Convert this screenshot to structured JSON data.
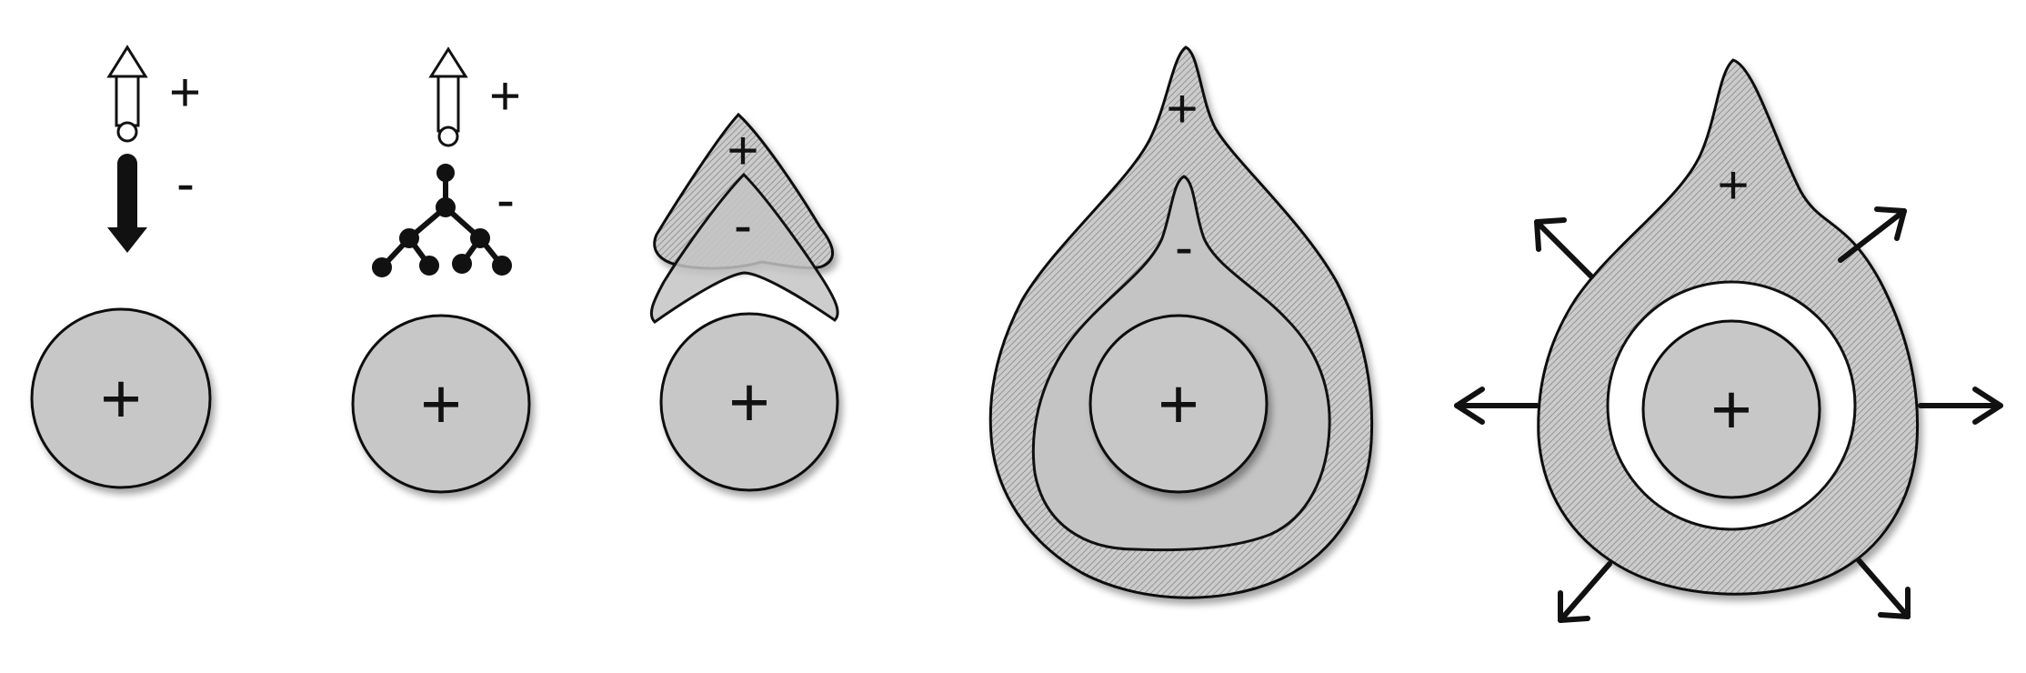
{
  "colors": {
    "background": "#ffffff",
    "ion_fill": "#c7c7c7",
    "inner_fill": "#c4c4c4",
    "hatch_fill": "#cbcbcb",
    "stroke": "#111111"
  },
  "panel1": {
    "arrow_top_label": "+",
    "arrow_bottom_label": "-",
    "ion_label": "+"
  },
  "panel2": {
    "arrow_top_label": "+",
    "tree_label": "-",
    "ion_label": "+"
  },
  "panel3": {
    "outer_label": "+",
    "inner_label": "-",
    "ion_label": "+"
  },
  "panel4": {
    "outer_label": "+",
    "inner_label": "-",
    "ion_label": "+"
  },
  "panel5": {
    "outer_label": "+",
    "ion_label": "+"
  }
}
